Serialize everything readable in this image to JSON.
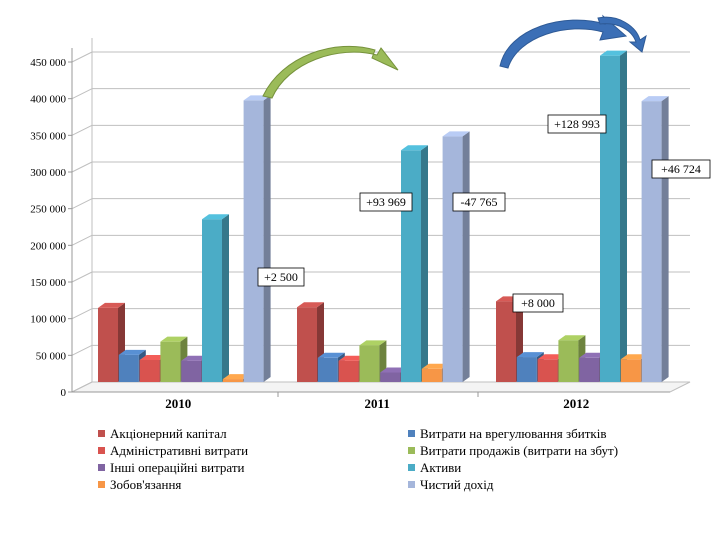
{
  "chart_data": {
    "type": "bar",
    "style": "3d-clustered-column",
    "categories": [
      "2010",
      "2011",
      "2012"
    ],
    "yticks": [
      "0",
      "50 000",
      "100 000",
      "150 000",
      "200 000",
      "250 000",
      "300 000",
      "350 000",
      "400 000",
      "450 000"
    ],
    "ylim": [
      0,
      450000
    ],
    "grid": true,
    "series": [
      {
        "name": "Акціонерний капітал",
        "color": "#C0504D",
        "values": [
          101000,
          102000,
          110000
        ]
      },
      {
        "name": "Витрати на врегулювання збитків",
        "color": "#4F81BD",
        "values": [
          37000,
          33000,
          34000
        ]
      },
      {
        "name": "Адміністративні витрати",
        "color": "#D9534F",
        "values": [
          30000,
          29000,
          31000
        ]
      },
      {
        "name": "Витрати продажів (витрати на збут)",
        "color": "#9BBB59",
        "values": [
          55000,
          50000,
          57000
        ]
      },
      {
        "name": "Інші операційні витрати",
        "color": "#8064A2",
        "values": [
          29000,
          13000,
          33000
        ]
      },
      {
        "name": "Активи",
        "color": "#4BACC6",
        "values": [
          222000,
          316000,
          445000
        ]
      },
      {
        "name": "Зобов'язання",
        "color": "#F79646",
        "values": [
          4000,
          18000,
          31000
        ]
      },
      {
        "name": "Чистий дохід",
        "color": "#A5B6DB",
        "values": [
          384000,
          335000,
          383000
        ]
      }
    ],
    "annotations": [
      "+2 500",
      "+93 969",
      "-47 765",
      "+8 000",
      "+128 993",
      "+46 724"
    ],
    "legend_position": "bottom"
  }
}
